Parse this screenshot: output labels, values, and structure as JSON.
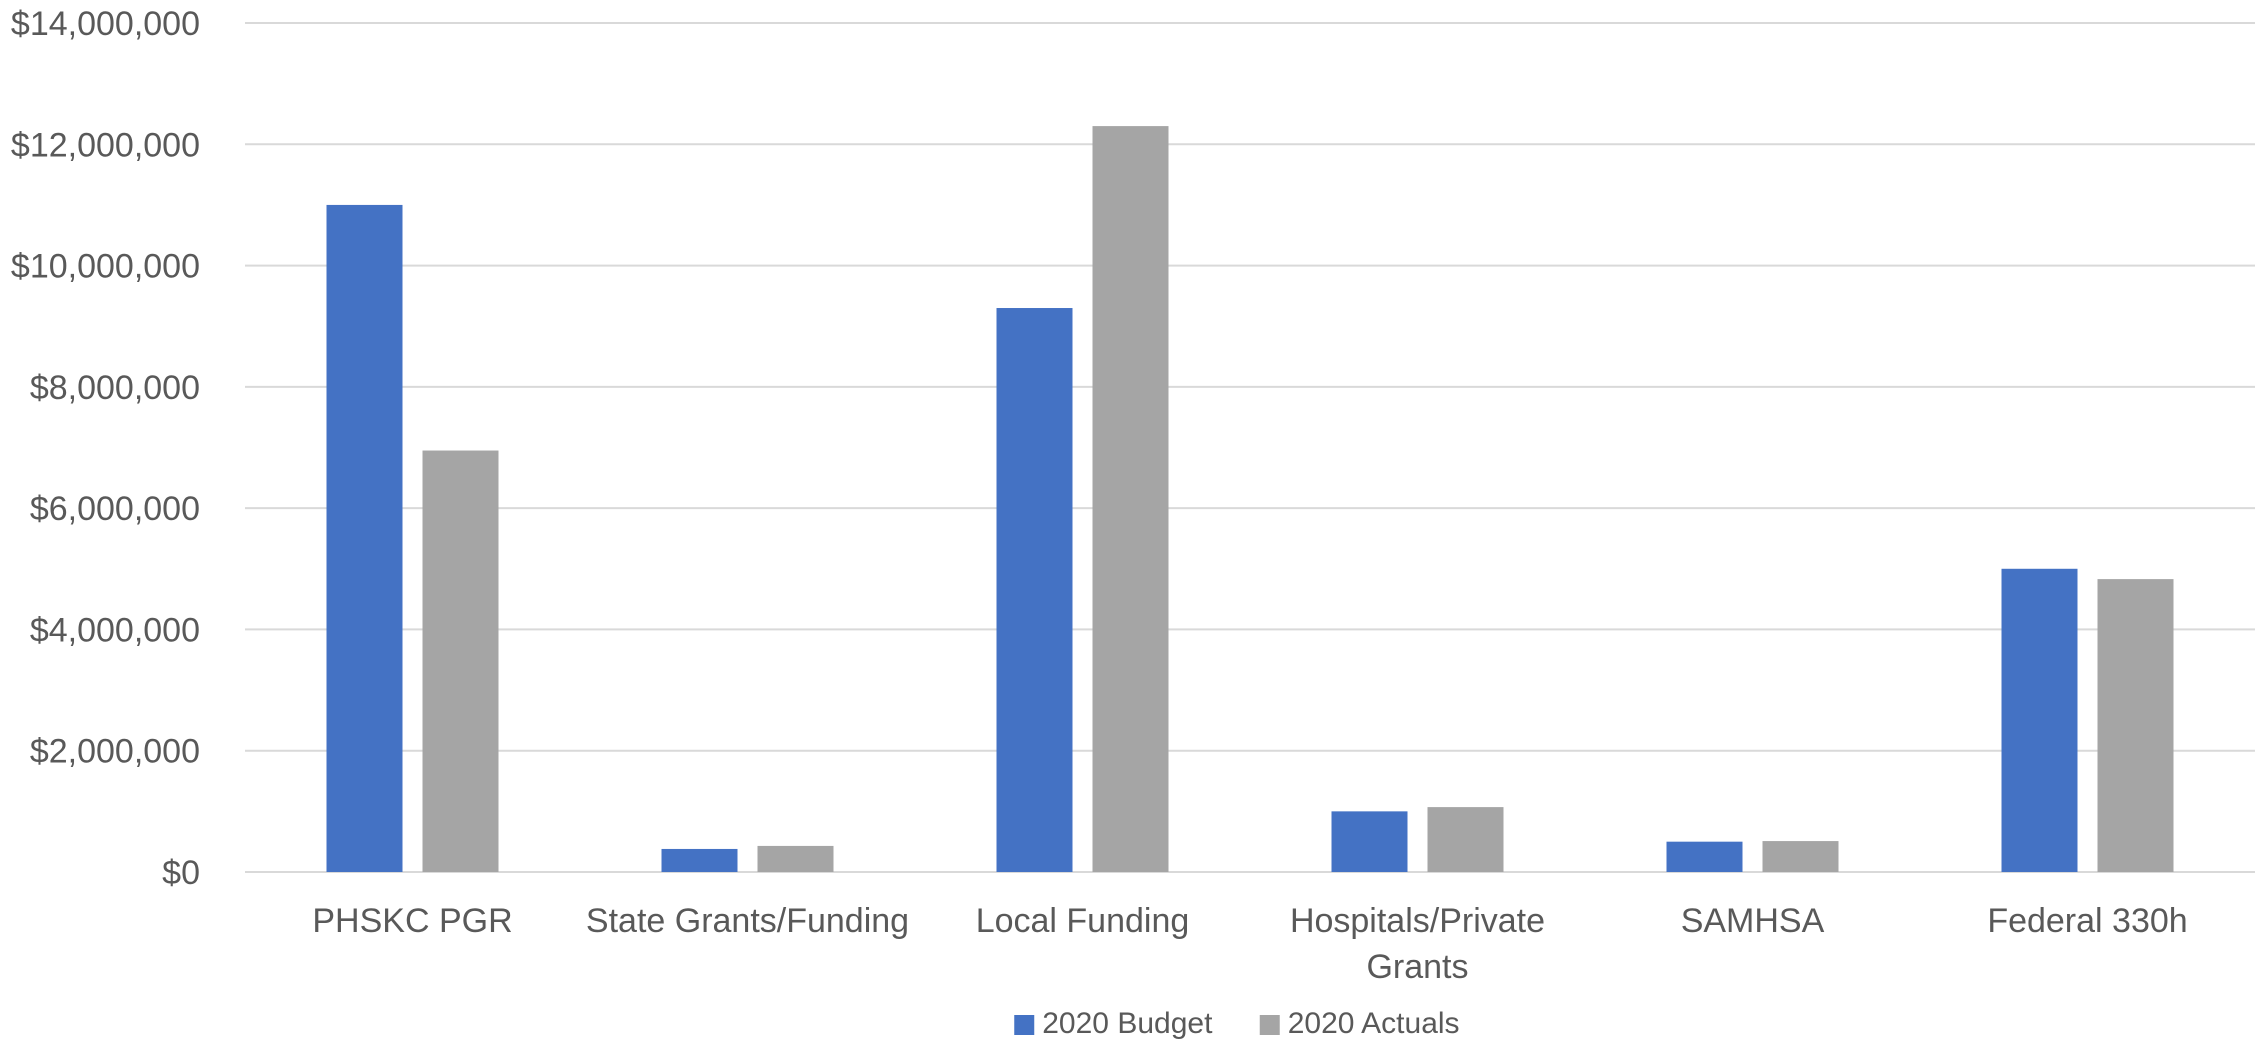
{
  "chart_data": {
    "type": "bar",
    "title": "",
    "xlabel": "",
    "ylabel": "",
    "categories": [
      [
        "PHSKC PGR"
      ],
      [
        "State Grants/Funding"
      ],
      [
        "Local Funding"
      ],
      [
        "Hospitals/Private",
        "Grants"
      ],
      [
        "SAMHSA"
      ],
      [
        "Federal 330h"
      ]
    ],
    "series": [
      {
        "name": "2020 Budget",
        "color": "#4472c4",
        "values": [
          11000000,
          380000,
          9300000,
          1000000,
          500000,
          5000000
        ]
      },
      {
        "name": "2020 Actuals",
        "color": "#a5a5a5",
        "values": [
          6950000,
          430000,
          12300000,
          1070000,
          510000,
          4830000
        ]
      }
    ],
    "ylim": [
      0,
      14000000
    ],
    "yticks": [
      0,
      2000000,
      4000000,
      6000000,
      8000000,
      10000000,
      12000000,
      14000000
    ],
    "ytick_labels": [
      "$0",
      "$2,000,000",
      "$4,000,000",
      "$6,000,000",
      "$8,000,000",
      "$10,000,000",
      "$12,000,000",
      "$14,000,000"
    ],
    "grid": true,
    "legend_position": "bottom-center"
  }
}
